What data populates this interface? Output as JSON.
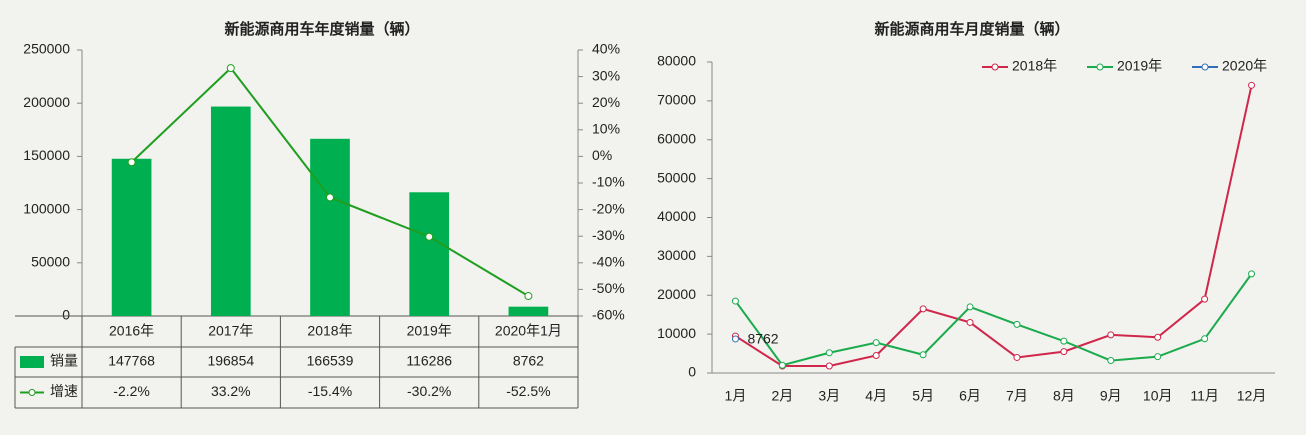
{
  "chart_data": [
    {
      "type": "bar",
      "title": "新能源商用车年度销量（辆）",
      "categories": [
        "2016年",
        "2017年",
        "2018年",
        "2019年",
        "2020年1月"
      ],
      "series": [
        {
          "name": "销量",
          "color": "#00b050",
          "values": [
            147768,
            196854,
            166539,
            116286,
            8762
          ]
        },
        {
          "name": "增速",
          "color": "#1f9e1f",
          "axis": "y2",
          "values": [
            -2.2,
            33.2,
            -15.4,
            -30.2,
            -52.5
          ],
          "value_labels": [
            "-2.2%",
            "33.2%",
            "-15.4%",
            "-30.2%",
            "-52.5%"
          ]
        }
      ],
      "ylim": [
        0,
        250000
      ],
      "yticks": [
        0,
        50000,
        100000,
        150000,
        200000,
        250000
      ],
      "y2lim": [
        -60,
        40
      ],
      "y2ticks": [
        {
          "value": -60,
          "label": "-60%"
        },
        {
          "value": -50,
          "label": "-50%"
        },
        {
          "value": -40,
          "label": "-40%"
        },
        {
          "value": -30,
          "label": "-30%"
        },
        {
          "value": -20,
          "label": "-20%"
        },
        {
          "value": -10,
          "label": "-10%"
        },
        {
          "value": 0,
          "label": "0%"
        },
        {
          "value": 10,
          "label": "10%"
        },
        {
          "value": 20,
          "label": "20%"
        },
        {
          "value": 30,
          "label": "30%"
        },
        {
          "value": 40,
          "label": "40%"
        }
      ]
    },
    {
      "type": "line",
      "title": "新能源商用车月度销量（辆）",
      "categories": [
        "1月",
        "2月",
        "3月",
        "4月",
        "5月",
        "6月",
        "7月",
        "8月",
        "9月",
        "10月",
        "11月",
        "12月"
      ],
      "series": [
        {
          "name": "2018年",
          "color": "#d0264a",
          "values": [
            9500,
            1800,
            1800,
            4500,
            16500,
            13000,
            4000,
            5500,
            9800,
            9200,
            19000,
            74000
          ]
        },
        {
          "name": "2019年",
          "color": "#1aab4c",
          "values": [
            18500,
            2000,
            5200,
            7800,
            4700,
            17000,
            12500,
            8200,
            3200,
            4200,
            8800,
            25500
          ]
        },
        {
          "name": "2020年",
          "color": "#2f6fb8",
          "values": [
            8762,
            null,
            null,
            null,
            null,
            null,
            null,
            null,
            null,
            null,
            null,
            null
          ]
        }
      ],
      "ylim": [
        0,
        80000
      ],
      "yticks": [
        0,
        10000,
        20000,
        30000,
        40000,
        50000,
        60000,
        70000,
        80000
      ],
      "legend": "top-right"
    }
  ]
}
